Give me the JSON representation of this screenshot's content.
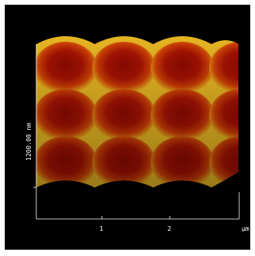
{
  "image": {
    "description_colors": {
      "background": "#000000",
      "valley": "#9a0f02",
      "mid": "#d34a08",
      "ridge": "#f2e23a",
      "axis": "#ffffff"
    },
    "z_label": "1200.00 nm",
    "x_ticks": [
      "1",
      "2"
    ],
    "x_unit": "µm"
  }
}
